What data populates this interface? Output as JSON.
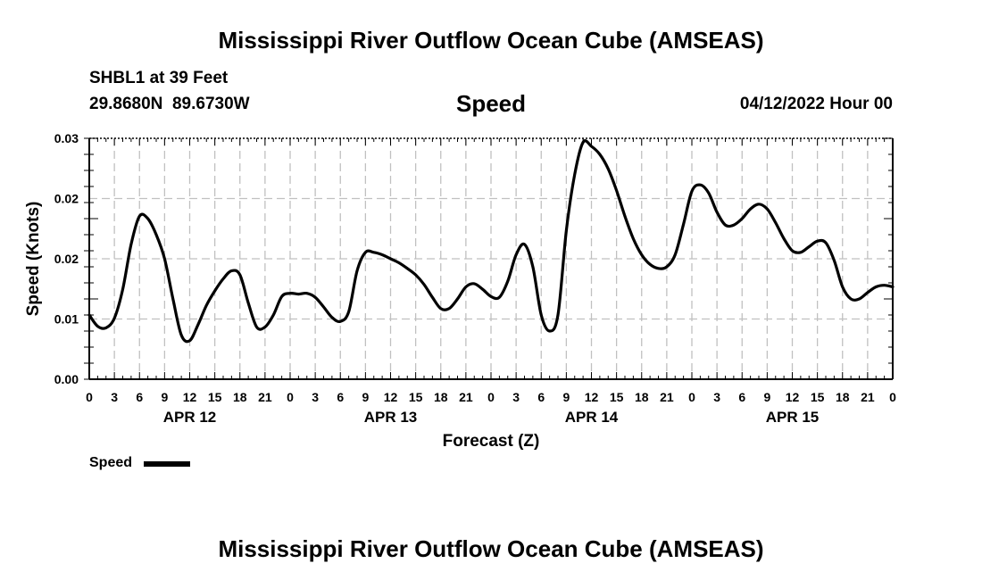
{
  "title": "Mississippi River Outflow Ocean Cube (AMSEAS)",
  "station": "SHBL1 at 39 Feet",
  "coordinates": "29.8680N  89.6730W",
  "parameter": "Speed",
  "date": "04/12/2022 Hour 00",
  "footer_title": "Mississippi River Outflow Ocean Cube (AMSEAS)",
  "chart_data": {
    "type": "line",
    "title": "Speed",
    "xlabel": "Forecast (Z)",
    "ylabel": "Speed (Knots)",
    "xlim": [
      0,
      96
    ],
    "ylim": [
      0,
      0.03
    ],
    "y_tick_labels": [
      "0.00",
      "0.01",
      "0.02",
      "0.02",
      "0.03"
    ],
    "x_tick_labels": [
      "0",
      "3",
      "6",
      "9",
      "12",
      "15",
      "18",
      "21",
      "0",
      "3",
      "6",
      "9",
      "12",
      "15",
      "18",
      "21",
      "0",
      "3",
      "6",
      "9",
      "12",
      "15",
      "18",
      "21",
      "0",
      "3",
      "6",
      "9",
      "12",
      "15",
      "18",
      "21",
      "0"
    ],
    "day_labels": [
      {
        "text": "APR 12",
        "hour": 12
      },
      {
        "text": "APR 13",
        "hour": 36
      },
      {
        "text": "APR 14",
        "hour": 60
      },
      {
        "text": "APR 15",
        "hour": 84
      }
    ],
    "grid": true,
    "legend": "bottom-left",
    "series": [
      {
        "name": "Speed",
        "color": "#000000",
        "x": [
          0,
          1,
          2,
          3,
          4,
          5,
          6,
          7,
          8,
          9,
          10,
          11,
          12,
          13,
          14,
          15,
          16,
          17,
          18,
          19,
          20,
          21,
          22,
          23,
          24,
          25,
          26,
          27,
          28,
          29,
          30,
          31,
          32,
          33,
          34,
          35,
          36,
          37,
          38,
          39,
          40,
          41,
          42,
          43,
          44,
          45,
          46,
          47,
          48,
          49,
          50,
          51,
          52,
          53,
          54,
          55,
          56,
          57,
          58,
          59,
          60,
          61,
          62,
          63,
          64,
          65,
          66,
          67,
          68,
          69,
          70,
          71,
          72,
          73,
          74,
          75,
          76,
          77,
          78,
          79,
          80,
          81,
          82,
          83,
          84,
          85,
          86,
          87,
          88,
          89,
          90,
          91,
          92,
          93,
          94,
          95,
          96
        ],
        "values": [
          0.008,
          0.0066,
          0.0064,
          0.0076,
          0.0112,
          0.0168,
          0.0203,
          0.02,
          0.018,
          0.015,
          0.01,
          0.0055,
          0.0048,
          0.0068,
          0.0092,
          0.011,
          0.0125,
          0.0135,
          0.013,
          0.0095,
          0.0065,
          0.0065,
          0.008,
          0.0103,
          0.0107,
          0.0106,
          0.0107,
          0.0102,
          0.009,
          0.0077,
          0.0072,
          0.0084,
          0.0135,
          0.0158,
          0.0158,
          0.0155,
          0.015,
          0.0145,
          0.0138,
          0.013,
          0.0118,
          0.0102,
          0.0088,
          0.0088,
          0.01,
          0.0115,
          0.0119,
          0.0112,
          0.0103,
          0.0102,
          0.0122,
          0.0155,
          0.0168,
          0.014,
          0.008,
          0.006,
          0.008,
          0.0185,
          0.0255,
          0.0295,
          0.029,
          0.028,
          0.0262,
          0.0235,
          0.0203,
          0.0175,
          0.0155,
          0.0143,
          0.0138,
          0.014,
          0.0155,
          0.0193,
          0.0234,
          0.0242,
          0.0232,
          0.0208,
          0.0192,
          0.0192,
          0.02,
          0.0212,
          0.0218,
          0.0212,
          0.0195,
          0.0175,
          0.016,
          0.0158,
          0.0165,
          0.0172,
          0.017,
          0.0148,
          0.0115,
          0.01,
          0.01,
          0.0108,
          0.0115,
          0.0117,
          0.0115
        ]
      }
    ]
  }
}
